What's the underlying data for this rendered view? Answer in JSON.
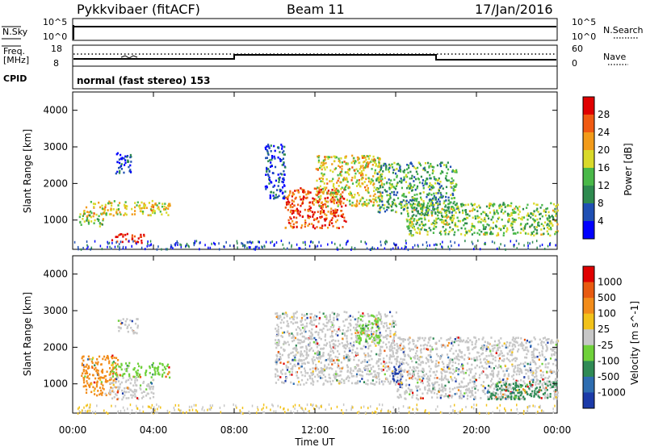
{
  "header": {
    "radar": "Pykkvibaer (fitACF)",
    "beam": "Beam 11",
    "date": "17/Jan/2016"
  },
  "noise_panel": {
    "left_label": "N.Sky",
    "right_label": "N.Search",
    "left_ticks": [
      "10^5",
      "10^0"
    ],
    "right_ticks": [
      "10^5",
      "10^0"
    ]
  },
  "freq_panel": {
    "left_label_line1": "Freq.",
    "left_label_line2": "[MHz]",
    "left_ticks": [
      "18",
      "8"
    ],
    "right_label": "Nave",
    "right_ticks": [
      "60",
      "0"
    ]
  },
  "cpid": {
    "label": "CPID",
    "text": "normal (fast stereo) 153"
  },
  "x_axis": {
    "ticks": [
      "00:00",
      "04:00",
      "08:00",
      "12:00",
      "16:00",
      "20:00",
      "00:00"
    ],
    "label": "Time UT"
  },
  "chart_data": [
    {
      "type": "heatmap",
      "panel": "power",
      "ylabel": "Slant Range [km]",
      "ylim": [
        200,
        4500
      ],
      "yticks": [
        1000,
        2000,
        3000,
        4000
      ],
      "xlim_hours": [
        0,
        24
      ],
      "colorbar": {
        "label": "Power [dB]",
        "ticks": [
          "4",
          "8",
          "12",
          "16",
          "20",
          "24",
          "28"
        ],
        "colors": [
          "#0000ff",
          "#1f4fb3",
          "#2e8a4f",
          "#49b848",
          "#d9d92a",
          "#f29b1a",
          "#f05a12",
          "#e00000"
        ]
      },
      "scatter_regions": [
        {
          "t0": 0.5,
          "t1": 4.8,
          "r0": 1150,
          "r1": 1550,
          "level": 0.6
        },
        {
          "t0": 0.3,
          "t1": 1.5,
          "r0": 850,
          "r1": 1200,
          "level": 0.5
        },
        {
          "t0": 1.9,
          "t1": 3.5,
          "r0": 400,
          "r1": 650,
          "level": 0.95
        },
        {
          "t0": 2.1,
          "t1": 2.9,
          "r0": 2300,
          "r1": 2900,
          "level": 0.1
        },
        {
          "t0": 10.5,
          "t1": 13.5,
          "r0": 800,
          "r1": 1900,
          "level": 0.9
        },
        {
          "t0": 12.0,
          "t1": 15.3,
          "r0": 1400,
          "r1": 2800,
          "level": 0.6
        },
        {
          "t0": 15.0,
          "t1": 19.0,
          "r0": 1200,
          "r1": 2600,
          "level": 0.35
        },
        {
          "t0": 16.5,
          "t1": 24.0,
          "r0": 600,
          "r1": 1500,
          "level": 0.45
        },
        {
          "t0": 9.5,
          "t1": 10.5,
          "r0": 1600,
          "r1": 3100,
          "level": 0.1
        }
      ]
    },
    {
      "type": "heatmap",
      "panel": "velocity",
      "ylabel": "Slant Range [km]",
      "ylim": [
        200,
        4500
      ],
      "yticks": [
        1000,
        2000,
        3000,
        4000
      ],
      "xlim_hours": [
        0,
        24
      ],
      "colorbar": {
        "label": "Velocity [m s^-1]",
        "ticks": [
          "1000",
          "500",
          "100",
          "25",
          "-25",
          "-100",
          "-500",
          "-1000"
        ],
        "colors": [
          "#1b3aa8",
          "#2e6db0",
          "#2f8a55",
          "#6fd13a",
          "#c7c7c7",
          "#f2c21a",
          "#f28c1a",
          "#e85a10",
          "#e00000"
        ]
      },
      "scatter_regions": [
        {
          "t0": 0.4,
          "t1": 2.2,
          "r0": 700,
          "r1": 1800,
          "color": "#f28c1a"
        },
        {
          "t0": 1.8,
          "t1": 4.8,
          "r0": 1200,
          "r1": 1600,
          "color": "#6fd13a"
        },
        {
          "t0": 1.8,
          "t1": 4.0,
          "r0": 600,
          "r1": 1200,
          "color": "#c7c7c7"
        },
        {
          "t0": 2.2,
          "t1": 3.2,
          "r0": 2400,
          "r1": 2800,
          "color": "#c7c7c7"
        },
        {
          "t0": 10.0,
          "t1": 16.0,
          "r0": 1000,
          "r1": 3000,
          "color": "#c7c7c7"
        },
        {
          "t0": 15.8,
          "t1": 16.3,
          "r0": 900,
          "r1": 1600,
          "color": "#1b3aa8"
        },
        {
          "t0": 16.0,
          "t1": 24.0,
          "r0": 600,
          "r1": 2300,
          "color": "#c7c7c7"
        },
        {
          "t0": 20.5,
          "t1": 24.0,
          "r0": 600,
          "r1": 1100,
          "color": "#2f8a55"
        },
        {
          "t0": 14.0,
          "t1": 15.2,
          "r0": 2100,
          "r1": 2900,
          "color": "#6fd13a"
        }
      ]
    }
  ]
}
